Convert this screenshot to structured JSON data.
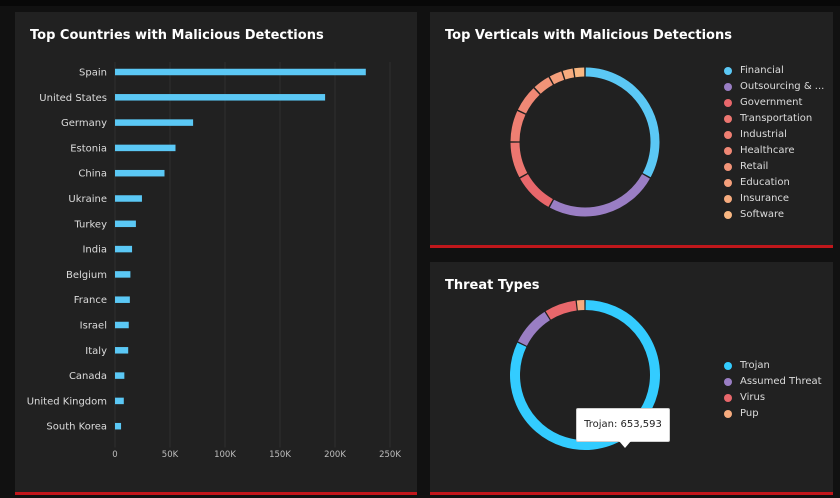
{
  "chart_data": [
    {
      "type": "bar",
      "orientation": "horizontal",
      "title": "Top Countries with Malicious Detections",
      "categories": [
        "Spain",
        "United States",
        "Germany",
        "Estonia",
        "China",
        "Ukraine",
        "Turkey",
        "India",
        "Belgium",
        "France",
        "Israel",
        "Italy",
        "Canada",
        "United Kingdom",
        "South Korea"
      ],
      "values": [
        228000,
        191000,
        71000,
        55000,
        45000,
        24500,
        19000,
        15500,
        14000,
        13500,
        12500,
        12000,
        8500,
        8000,
        5500
      ],
      "xlim": [
        0,
        250000
      ],
      "xticks": [
        0,
        50000,
        100000,
        150000,
        200000,
        250000
      ],
      "xtick_labels": [
        "0",
        "50K",
        "100K",
        "150K",
        "200K",
        "250K"
      ],
      "grid": true,
      "color": "#5bc8f5"
    },
    {
      "type": "pie",
      "donut": true,
      "title": "Top Verticals with Malicious Detections",
      "labels": [
        "Financial",
        "Outsourcing & ...",
        "Government",
        "Transportation",
        "Industrial",
        "Healthcare",
        "Retail",
        "Education",
        "Insurance",
        "Software"
      ],
      "values": [
        33,
        25,
        9,
        8,
        7,
        6,
        4,
        3,
        2.5,
        2.5
      ],
      "colors": [
        "#5bc8f5",
        "#9a7ec4",
        "#e8676b",
        "#ec7670",
        "#ef7f72",
        "#f08875",
        "#f29478",
        "#f49f7b",
        "#f6ab7e",
        "#f8b782"
      ],
      "legend": "right"
    },
    {
      "type": "pie",
      "donut": true,
      "title": "Threat Types",
      "labels": [
        "Trojan",
        "Assumed Threat",
        "Virus",
        "Pup"
      ],
      "values": [
        653593,
        70000,
        56000,
        15000
      ],
      "colors": [
        "#33ccff",
        "#9a7ec4",
        "#e8676b",
        "#f6ab7e"
      ],
      "legend": "right",
      "tooltip": "Trojan: 653,593"
    }
  ]
}
